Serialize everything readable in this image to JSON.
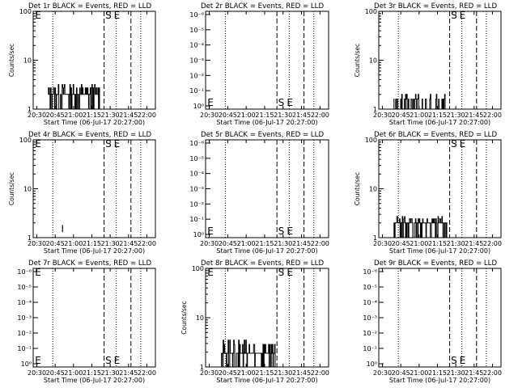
{
  "chart_data": [
    {
      "type": "line",
      "title": "Det 1r BLACK = Events, RED = LLD",
      "xlabel": "Start Time (06-Jul-17 20:27:00)",
      "ylabel": "Counts/sec",
      "yscale": "log",
      "ylim": [
        1,
        100
      ],
      "yticks": [
        "1",
        "10",
        "100"
      ],
      "xticks": [
        "20:30",
        "20:45",
        "21:00",
        "21:15",
        "21:30",
        "21:45",
        "22:00"
      ],
      "xlim_min": [
        0,
        100
      ],
      "dotted_lines_min": [
        16,
        68,
        88
      ],
      "dashed_lines_min": [
        58,
        80
      ],
      "markers": [
        {
          "text": "E",
          "x_min": 1.5,
          "pos": "top"
        },
        {
          "text": "S",
          "x_min": 59,
          "pos": "top"
        },
        {
          "text": "E",
          "x_min": 66,
          "pos": "top"
        }
      ],
      "series": [
        {
          "values_segment": {
            "start_min": 12,
            "end_min": 55,
            "low": 2.0,
            "high": 3.2,
            "base": 1.0
          }
        }
      ]
    },
    {
      "type": "line",
      "title": "Det 2r BLACK = Events, RED = LLD",
      "xlabel": "Start Time (06-Jul-17 20:27:00)",
      "ylabel": "",
      "yscale": "log",
      "ylim": [
        0.8,
        1.2
      ],
      "yticks": [
        "10⁰",
        "10⁻¹",
        "10⁻²",
        "10⁻³",
        "10⁻⁴",
        "10⁻⁵",
        "10⁻⁶"
      ],
      "xticks": [
        "20:30",
        "20:45",
        "21:00",
        "21:15",
        "21:30",
        "21:45",
        "22:00"
      ],
      "xlim_min": [
        0,
        100
      ],
      "dotted_lines_min": [
        16,
        68,
        88
      ],
      "dashed_lines_min": [
        58,
        80
      ],
      "markers": [
        {
          "text": "E",
          "x_min": 1.5,
          "pos": "bottom"
        },
        {
          "text": "S",
          "x_min": 59,
          "pos": "bottom"
        },
        {
          "text": "E",
          "x_min": 66,
          "pos": "bottom"
        }
      ],
      "series": []
    },
    {
      "type": "line",
      "title": "Det 3r BLACK = Events, RED = LLD",
      "xlabel": "Start Time (06-Jul-17 20:27:00)",
      "ylabel": "Counts/sec",
      "yscale": "log",
      "ylim": [
        1,
        100
      ],
      "yticks": [
        "1",
        "10",
        "100"
      ],
      "xticks": [
        "20:30",
        "20:45",
        "21:00",
        "21:15",
        "21:30",
        "21:45",
        "22:00"
      ],
      "xlim_min": [
        0,
        100
      ],
      "dotted_lines_min": [
        16,
        68,
        88
      ],
      "dashed_lines_min": [
        58,
        80
      ],
      "markers": [
        {
          "text": "S",
          "x_min": 59,
          "pos": "top"
        },
        {
          "text": "E",
          "x_min": 66,
          "pos": "top"
        }
      ],
      "series": [
        {
          "values_segment": {
            "start_min": 12,
            "end_min": 55,
            "low": 1.0,
            "high": 2.0,
            "base": 1.0
          }
        }
      ]
    },
    {
      "type": "line",
      "title": "Det 4r BLACK = Events, RED = LLD",
      "xlabel": "Start Time (06-Jul-17 20:27:00)",
      "ylabel": "Counts/sec",
      "yscale": "log",
      "ylim": [
        1,
        100
      ],
      "yticks": [
        "1",
        "10",
        "100"
      ],
      "xticks": [
        "20:30",
        "20:45",
        "21:00",
        "21:15",
        "21:30",
        "21:45",
        "22:00"
      ],
      "xlim_min": [
        0,
        100
      ],
      "dotted_lines_min": [
        16,
        68,
        88
      ],
      "dashed_lines_min": [
        58,
        80
      ],
      "markers": [
        {
          "text": "E",
          "x_min": 1.5,
          "pos": "top"
        },
        {
          "text": "S",
          "x_min": 59,
          "pos": "top"
        },
        {
          "text": "E",
          "x_min": 66,
          "pos": "top"
        }
      ],
      "series": [
        {
          "spike": {
            "x_min": 24,
            "low": 1.3,
            "high": 1.8
          }
        }
      ]
    },
    {
      "type": "line",
      "title": "Det 5r BLACK = Events, RED = LLD",
      "xlabel": "Start Time (06-Jul-17 20:27:00)",
      "ylabel": "",
      "yscale": "log",
      "ylim": [
        0.8,
        1.2
      ],
      "yticks": [
        "10⁰",
        "10⁻¹",
        "10⁻²",
        "10⁻³",
        "10⁻⁴",
        "10⁻⁵",
        "10⁻⁶"
      ],
      "xticks": [
        "20:30",
        "20:45",
        "21:00",
        "21:15",
        "21:30",
        "21:45",
        "22:00"
      ],
      "xlim_min": [
        0,
        100
      ],
      "dotted_lines_min": [
        16,
        68,
        88
      ],
      "dashed_lines_min": [
        58,
        80
      ],
      "markers": [
        {
          "text": "E",
          "x_min": 1.5,
          "pos": "bottom"
        },
        {
          "text": "S",
          "x_min": 59,
          "pos": "bottom"
        },
        {
          "text": "E",
          "x_min": 66,
          "pos": "bottom"
        }
      ],
      "series": []
    },
    {
      "type": "line",
      "title": "Det 6r BLACK = Events, RED = LLD",
      "xlabel": "Start Time (06-Jul-17 20:27:00)",
      "ylabel": "Counts/sec",
      "yscale": "log",
      "ylim": [
        1,
        100
      ],
      "yticks": [
        "1",
        "10",
        "100"
      ],
      "xticks": [
        "20:30",
        "20:45",
        "21:00",
        "21:15",
        "21:30",
        "21:45",
        "22:00"
      ],
      "xlim_min": [
        0,
        100
      ],
      "dotted_lines_min": [
        16,
        68,
        88
      ],
      "dashed_lines_min": [
        58,
        80
      ],
      "markers": [
        {
          "text": "S",
          "x_min": 59,
          "pos": "top"
        },
        {
          "text": "E",
          "x_min": 66,
          "pos": "top"
        }
      ],
      "series": [
        {
          "values_segment": {
            "start_min": 12,
            "end_min": 56,
            "low": 2.0,
            "high": 2.7,
            "base": 1.0
          }
        }
      ]
    },
    {
      "type": "line",
      "title": "Det 7r BLACK = Events, RED = LLD",
      "xlabel": "Start Time (06-Jul-17 20:27:00)",
      "ylabel": "",
      "yscale": "log",
      "ylim": [
        0.8,
        1.2
      ],
      "yticks": [
        "10⁰",
        "10⁻¹",
        "10⁻²",
        "10⁻³",
        "10⁻⁴",
        "10⁻⁵",
        "10⁻⁶"
      ],
      "xticks": [
        "20:30",
        "20:45",
        "21:00",
        "21:15",
        "21:30",
        "21:45",
        "22:00"
      ],
      "xlim_min": [
        0,
        100
      ],
      "dotted_lines_min": [
        16,
        68,
        88
      ],
      "dashed_lines_min": [
        58,
        80
      ],
      "markers": [
        {
          "text": "E",
          "x_min": 1.5,
          "pos": "top"
        },
        {
          "text": "E",
          "x_min": 1.5,
          "pos": "bottom"
        },
        {
          "text": "S",
          "x_min": 59,
          "pos": "bottom"
        },
        {
          "text": "E",
          "x_min": 66,
          "pos": "bottom"
        }
      ],
      "series": []
    },
    {
      "type": "line",
      "title": "Det 8r BLACK = Events, RED = LLD",
      "xlabel": "Start Time (06-Jul-17 20:27:00)",
      "ylabel": "Counts/sec",
      "yscale": "log",
      "ylim": [
        1,
        100
      ],
      "yticks": [
        "1",
        "10",
        "100"
      ],
      "xticks": [
        "20:30",
        "20:45",
        "21:00",
        "21:15",
        "21:30",
        "21:45",
        "22:00"
      ],
      "xlim_min": [
        0,
        100
      ],
      "dotted_lines_min": [
        16,
        68,
        88
      ],
      "dashed_lines_min": [
        58,
        80
      ],
      "markers": [
        {
          "text": "E",
          "x_min": 1.5,
          "pos": "top"
        },
        {
          "text": "S",
          "x_min": 59,
          "pos": "top"
        },
        {
          "text": "E",
          "x_min": 66,
          "pos": "top"
        }
      ],
      "series": [
        {
          "values_segment": {
            "start_min": 12,
            "end_min": 57,
            "low": 1.9,
            "high": 3.5,
            "base": 1.0
          }
        }
      ]
    },
    {
      "type": "line",
      "title": "Det 9r BLACK = Events, RED = LLD",
      "xlabel": "Start Time (06-Jul-17 20:27:00)",
      "ylabel": "",
      "yscale": "log",
      "ylim": [
        0.8,
        1.2
      ],
      "yticks": [
        "10⁰",
        "10⁻¹",
        "10⁻²",
        "10⁻³",
        "10⁻⁴",
        "10⁻⁵",
        "10⁻⁶"
      ],
      "xticks": [
        "20:30",
        "20:45",
        "21:00",
        "21:15",
        "21:30",
        "21:45",
        "22:00"
      ],
      "xlim_min": [
        0,
        100
      ],
      "dotted_lines_min": [
        16,
        68,
        88
      ],
      "dashed_lines_min": [
        58,
        80
      ],
      "markers": [
        {
          "text": "S",
          "x_min": 59,
          "pos": "bottom"
        },
        {
          "text": "E",
          "x_min": 66,
          "pos": "bottom"
        }
      ],
      "series": []
    }
  ]
}
